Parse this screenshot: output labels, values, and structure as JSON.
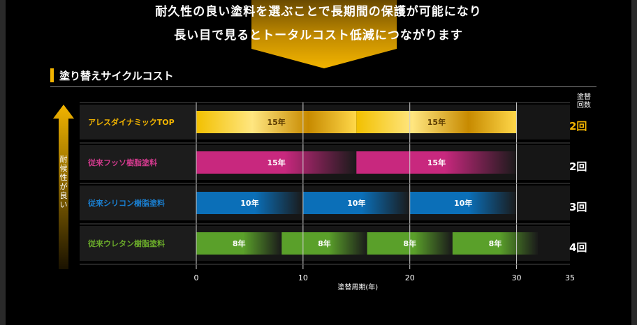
{
  "header": {
    "line1": "耐久性の良い塗料を選ぶことで長期間の保護が可能になり",
    "line2": "長い目で見るとトータルコスト低減につながります"
  },
  "section": {
    "title": "塗り替えサイクルコスト"
  },
  "y_axis_note": "耐候性が良い",
  "count_header": [
    "塗替",
    "回数"
  ],
  "colors": {
    "accent": "#f2b400",
    "gold": "#f2c000",
    "magenta": "#c8287e",
    "blue": "#0b6fb8",
    "green": "#5aa02a"
  },
  "chart_data": {
    "type": "bar",
    "xlabel": "塗替周期(年)",
    "xlim": [
      0,
      35
    ],
    "xticks": [
      0,
      10,
      20,
      30,
      35
    ],
    "grid": true,
    "series": [
      {
        "name": "アレスダイナミックTOP",
        "color": "#f2c000",
        "segments": [
          {
            "start": 0,
            "end": 15,
            "label": "15年"
          },
          {
            "start": 15,
            "end": 30,
            "label": "15年"
          }
        ],
        "count": "2回"
      },
      {
        "name": "従来フッソ樹脂塗料",
        "color": "#c8287e",
        "segments": [
          {
            "start": 0,
            "end": 15,
            "label": "15年"
          },
          {
            "start": 15,
            "end": 30,
            "label": "15年"
          }
        ],
        "count": "2回"
      },
      {
        "name": "従来シリコン樹脂塗料",
        "color": "#0b6fb8",
        "segments": [
          {
            "start": 0,
            "end": 10,
            "label": "10年"
          },
          {
            "start": 10,
            "end": 20,
            "label": "10年"
          },
          {
            "start": 20,
            "end": 30,
            "label": "10年"
          }
        ],
        "count": "3回"
      },
      {
        "name": "従来ウレタン樹脂塗料",
        "color": "#5aa02a",
        "segments": [
          {
            "start": 0,
            "end": 8,
            "label": "8年"
          },
          {
            "start": 8,
            "end": 16,
            "label": "8年"
          },
          {
            "start": 16,
            "end": 24,
            "label": "8年"
          },
          {
            "start": 24,
            "end": 32,
            "label": "8年"
          }
        ],
        "count": "4回"
      }
    ]
  }
}
